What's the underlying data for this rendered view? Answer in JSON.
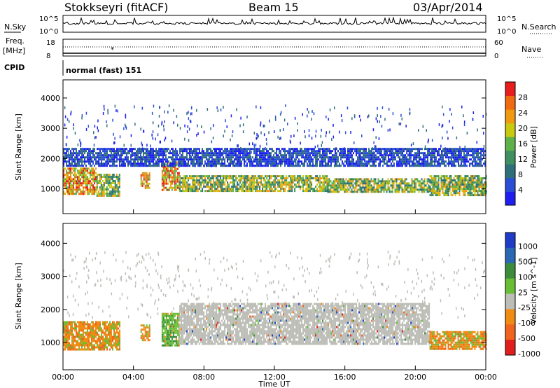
{
  "header": {
    "station": "Stokkseyri (fitACF)",
    "beam": "Beam 15",
    "date": "03/Apr/2014"
  },
  "strip_panels": {
    "nsky_label": "N.Sky",
    "nsearch_label": "N.Search",
    "freq_label_line1": "Freq.",
    "freq_label_line2": "[MHz]",
    "nave_label": "Nave",
    "cpid_label": "CPID",
    "cpid_text": "normal (fast) 151",
    "n_ticks_left": [
      "10^5",
      "10^0"
    ],
    "n_ticks_right": [
      "10^5",
      "10^0"
    ],
    "freq_ticks": [
      "18",
      "8"
    ],
    "nave_ticks": [
      "60",
      "0"
    ]
  },
  "colors": {
    "power_scale": [
      "#1e1ef0",
      "#2a4fd6",
      "#2f6f7a",
      "#3f8f60",
      "#5fb24a",
      "#c9c90f",
      "#f09a12",
      "#f06a12",
      "#e81e1e"
    ],
    "velocity_scale": [
      "#1e3cc8",
      "#2a68b4",
      "#3c8c3c",
      "#6abe36",
      "#bdbdb7",
      "#f08c14",
      "#f0641e",
      "#e11e1e"
    ],
    "ground_scatter": "#bdbdb7"
  },
  "chart_data": [
    {
      "type": "heatmap",
      "title": "Power",
      "xlabel": "Time UT",
      "ylabel": "Slant Range [km]",
      "x_ticks": [
        "00:00",
        "04:00",
        "08:00",
        "12:00",
        "16:00",
        "20:00",
        "00:00"
      ],
      "xlim_hours": [
        0,
        24
      ],
      "y_ticks": [
        1000,
        2000,
        3000,
        4000
      ],
      "ylim": [
        180,
        4600
      ],
      "colorbar": {
        "label": "Power [dB]",
        "ticks": [
          4,
          8,
          12,
          16,
          20,
          24,
          28
        ],
        "range": [
          0,
          32
        ]
      },
      "bands": [
        {
          "t_start": 0.0,
          "t_end": 1.9,
          "r_low": 800,
          "r_high": 1700,
          "level": "high"
        },
        {
          "t_start": 1.9,
          "t_end": 3.2,
          "r_low": 800,
          "r_high": 1500,
          "level": "mid"
        },
        {
          "t_start": 4.4,
          "t_end": 4.9,
          "r_low": 1050,
          "r_high": 1550,
          "level": "high"
        },
        {
          "t_start": 5.6,
          "t_end": 6.6,
          "r_low": 950,
          "r_high": 1900,
          "level": "high"
        },
        {
          "t_start": 6.6,
          "t_end": 15.0,
          "r_low": 950,
          "r_high": 1450,
          "level": "mid"
        },
        {
          "t_start": 15.0,
          "t_end": 20.8,
          "r_low": 900,
          "r_high": 1350,
          "level": "mid"
        },
        {
          "t_start": 20.8,
          "t_end": 24.0,
          "r_low": 800,
          "r_high": 1450,
          "level": "mid"
        },
        {
          "t_start": 0.0,
          "t_end": 24.0,
          "r_low": 1750,
          "r_high": 2350,
          "level": "low"
        }
      ]
    },
    {
      "type": "heatmap",
      "title": "Velocity",
      "xlabel": "Time UT",
      "ylabel": "Slant Range [km]",
      "x_ticks": [
        "00:00",
        "04:00",
        "08:00",
        "12:00",
        "16:00",
        "20:00",
        "00:00"
      ],
      "xlim_hours": [
        0,
        24
      ],
      "y_ticks": [
        1000,
        2000,
        3000,
        4000
      ],
      "ylim": [
        180,
        4600
      ],
      "colorbar": {
        "label": "Velocity [m s^-1]",
        "ticks": [
          1000,
          500,
          100,
          25,
          -25,
          -100,
          -500,
          -1000
        ]
      },
      "bands": [
        {
          "t_start": 0.0,
          "t_end": 3.2,
          "r_low": 800,
          "r_high": 1650,
          "level": "negative"
        },
        {
          "t_start": 4.4,
          "t_end": 4.9,
          "r_low": 1050,
          "r_high": 1550,
          "level": "negative"
        },
        {
          "t_start": 5.6,
          "t_end": 6.6,
          "r_low": 900,
          "r_high": 1900,
          "level": "positive"
        },
        {
          "t_start": 6.6,
          "t_end": 20.8,
          "r_low": 950,
          "r_high": 2200,
          "level": "ground"
        },
        {
          "t_start": 20.8,
          "t_end": 24.0,
          "r_low": 800,
          "r_high": 1350,
          "level": "negative"
        }
      ]
    }
  ]
}
